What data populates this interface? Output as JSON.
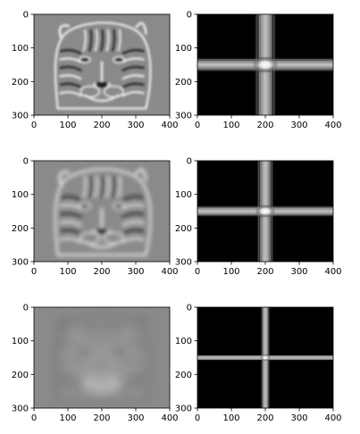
{
  "chart_data": [
    {
      "type": "heatmap",
      "content": "tiger image, high-pass filtered (edges emphasized, gray background)",
      "xlim": [
        0,
        400
      ],
      "ylim": [
        0,
        300
      ],
      "y_inverted": true,
      "xticks": [
        0,
        100,
        200,
        300,
        400
      ],
      "yticks": [
        0,
        100,
        200,
        300
      ],
      "grid": false
    },
    {
      "type": "heatmap",
      "content": "Fourier magnitude spectrum with bright cross and center",
      "xlim": [
        0,
        400
      ],
      "ylim": [
        0,
        300
      ],
      "y_inverted": true,
      "xticks": [
        0,
        100,
        200,
        300,
        400
      ],
      "yticks": [
        0,
        100,
        200,
        300
      ],
      "grid": false
    },
    {
      "type": "heatmap",
      "content": "tiger image, band-pass filtered (mid-frequency edges, gray background)",
      "xlim": [
        0,
        400
      ],
      "ylim": [
        0,
        300
      ],
      "y_inverted": true,
      "xticks": [
        0,
        100,
        200,
        300,
        400
      ],
      "yticks": [
        0,
        100,
        200,
        300
      ],
      "grid": false
    },
    {
      "type": "heatmap",
      "content": "Fourier magnitude spectrum, narrower cross",
      "xlim": [
        0,
        400
      ],
      "ylim": [
        0,
        300
      ],
      "y_inverted": true,
      "xticks": [
        0,
        100,
        200,
        300,
        400
      ],
      "yticks": [
        0,
        100,
        200,
        300
      ],
      "grid": false
    },
    {
      "type": "heatmap",
      "content": "tiger image, low-pass filtered (blurred)",
      "xlim": [
        0,
        400
      ],
      "ylim": [
        0,
        300
      ],
      "y_inverted": true,
      "xticks": [
        0,
        100,
        200,
        300,
        400
      ],
      "yticks": [
        0,
        100,
        200,
        300
      ],
      "grid": false
    },
    {
      "type": "heatmap",
      "content": "Fourier magnitude spectrum, thin cross with small bright center",
      "xlim": [
        0,
        400
      ],
      "ylim": [
        0,
        300
      ],
      "y_inverted": true,
      "xticks": [
        0,
        100,
        200,
        300,
        400
      ],
      "yticks": [
        0,
        100,
        200,
        300
      ],
      "grid": false
    }
  ],
  "colors": {
    "axis": "#000000",
    "gray_bg": "#8a8a8a",
    "spectrum_bg": "#000000",
    "spectrum_cross": "#d0d0d0"
  }
}
